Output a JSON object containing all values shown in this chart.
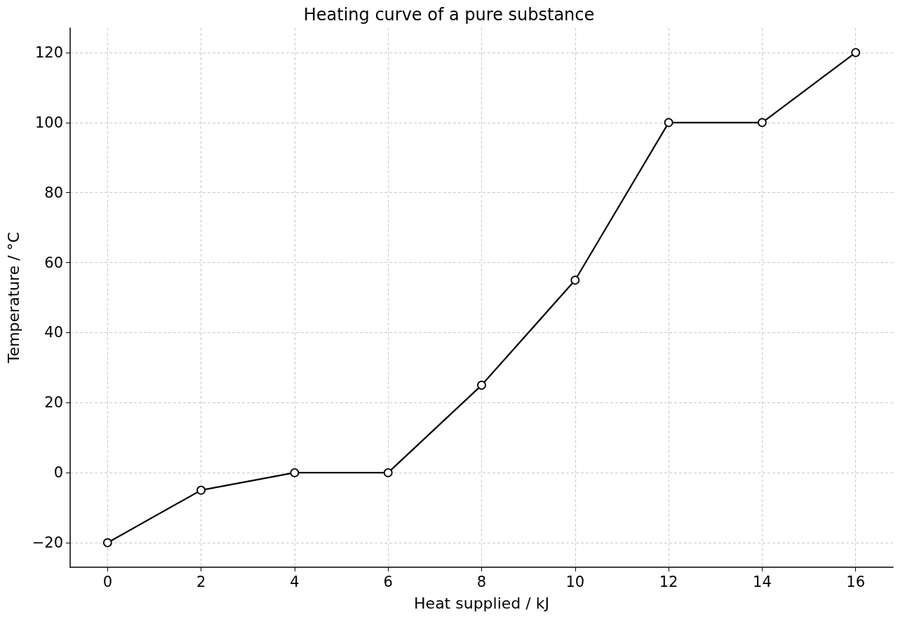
{
  "chart_data": {
    "type": "line",
    "title": "Heating curve of a pure substance",
    "xlabel": "Heat supplied / kJ",
    "ylabel": "Temperature / °C",
    "x": [
      0,
      2,
      4,
      6,
      8,
      10,
      12,
      14,
      16
    ],
    "series": [
      {
        "color": "#000000",
        "values": [
          -20,
          -5,
          0,
          0,
          25,
          55,
          100,
          100,
          120
        ]
      }
    ],
    "xlim": [
      -0.8,
      16.8
    ],
    "xticks": [
      0,
      2,
      4,
      6,
      8,
      10,
      12,
      14,
      16
    ],
    "ylim": [
      -27,
      127
    ],
    "yticks": [
      {
        "value": -20,
        "label": "−20"
      },
      0,
      20,
      40,
      60,
      80,
      100,
      120
    ],
    "grid": true,
    "marker": "circle",
    "line_style": "solid"
  }
}
